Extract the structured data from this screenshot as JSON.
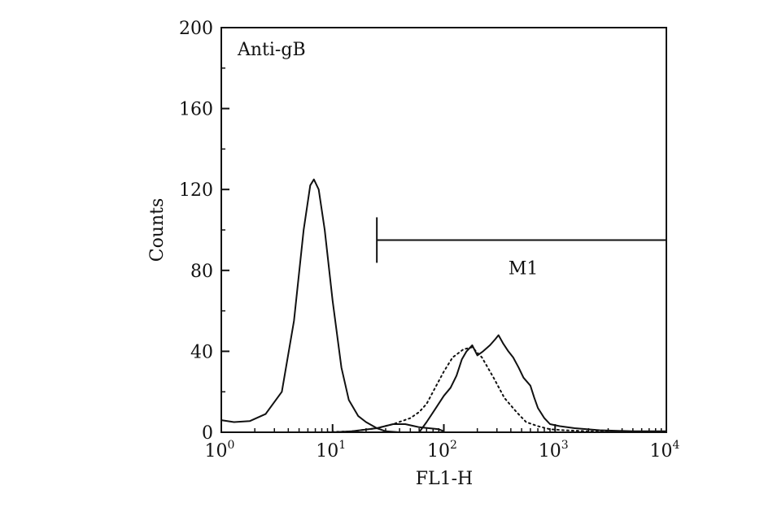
{
  "chart_data": {
    "type": "line",
    "title": "",
    "annotation": "Anti-gB",
    "xlabel": "FL1-H",
    "ylabel": "Counts",
    "xscale": "log",
    "xlim": [
      1,
      10000
    ],
    "ylim": [
      0,
      200
    ],
    "x_ticks": [
      {
        "base": "10",
        "exp": "0",
        "value": 1
      },
      {
        "base": "10",
        "exp": "1",
        "value": 10
      },
      {
        "base": "10",
        "exp": "2",
        "value": 100
      },
      {
        "base": "10",
        "exp": "3",
        "value": 1000
      },
      {
        "base": "10",
        "exp": "4",
        "value": 10000
      }
    ],
    "y_ticks": [
      "0",
      "40",
      "80",
      "120",
      "160",
      "200"
    ],
    "marker": {
      "label": "M1",
      "x_start": 25,
      "x_end": 10000,
      "y": 95
    },
    "series": [
      {
        "style": "solid",
        "points": [
          [
            1,
            6
          ],
          [
            1.3,
            5
          ],
          [
            1.8,
            5.5
          ],
          [
            2.5,
            9
          ],
          [
            3.5,
            20
          ],
          [
            4.5,
            55
          ],
          [
            5.5,
            100
          ],
          [
            6.3,
            122
          ],
          [
            6.8,
            125
          ],
          [
            7.5,
            120
          ],
          [
            8.5,
            100
          ],
          [
            10,
            65
          ],
          [
            12,
            32
          ],
          [
            14,
            16
          ],
          [
            17,
            8
          ],
          [
            20,
            5
          ],
          [
            25,
            2
          ],
          [
            30,
            0.5
          ],
          [
            40,
            0
          ]
        ]
      },
      {
        "style": "solid",
        "points": [
          [
            5,
            0
          ],
          [
            10,
            0
          ],
          [
            15,
            0.5
          ],
          [
            25,
            2
          ],
          [
            35,
            4
          ],
          [
            45,
            4
          ],
          [
            60,
            2.5
          ],
          [
            90,
            1.5
          ],
          [
            100,
            0.5
          ]
        ]
      },
      {
        "style": "solid",
        "points": [
          [
            60,
            0
          ],
          [
            70,
            5
          ],
          [
            85,
            12
          ],
          [
            100,
            18
          ],
          [
            115,
            22
          ],
          [
            130,
            28
          ],
          [
            145,
            36
          ],
          [
            160,
            40
          ],
          [
            180,
            43
          ],
          [
            200,
            38
          ],
          [
            225,
            40
          ],
          [
            260,
            43
          ],
          [
            290,
            46
          ],
          [
            310,
            48
          ],
          [
            340,
            44
          ],
          [
            380,
            40
          ],
          [
            420,
            37
          ],
          [
            470,
            32
          ],
          [
            520,
            27
          ],
          [
            600,
            23
          ],
          [
            650,
            17
          ],
          [
            700,
            12
          ],
          [
            800,
            7
          ],
          [
            900,
            4
          ],
          [
            1100,
            3
          ],
          [
            1500,
            2
          ],
          [
            2500,
            1
          ],
          [
            5000,
            0.5
          ],
          [
            10000,
            0.5
          ]
        ]
      },
      {
        "style": "dotted",
        "points": [
          [
            4,
            0
          ],
          [
            8,
            0
          ],
          [
            15,
            0.5
          ],
          [
            25,
            2
          ],
          [
            35,
            4
          ],
          [
            50,
            7
          ],
          [
            60,
            10
          ],
          [
            70,
            14
          ],
          [
            80,
            20
          ],
          [
            100,
            30
          ],
          [
            120,
            37
          ],
          [
            150,
            41
          ],
          [
            180,
            42
          ],
          [
            220,
            37
          ],
          [
            280,
            27
          ],
          [
            350,
            17
          ],
          [
            450,
            10
          ],
          [
            550,
            5
          ],
          [
            700,
            3
          ],
          [
            900,
            1.5
          ],
          [
            1200,
            1
          ],
          [
            2000,
            0.5
          ],
          [
            4000,
            0.3
          ]
        ]
      }
    ]
  }
}
